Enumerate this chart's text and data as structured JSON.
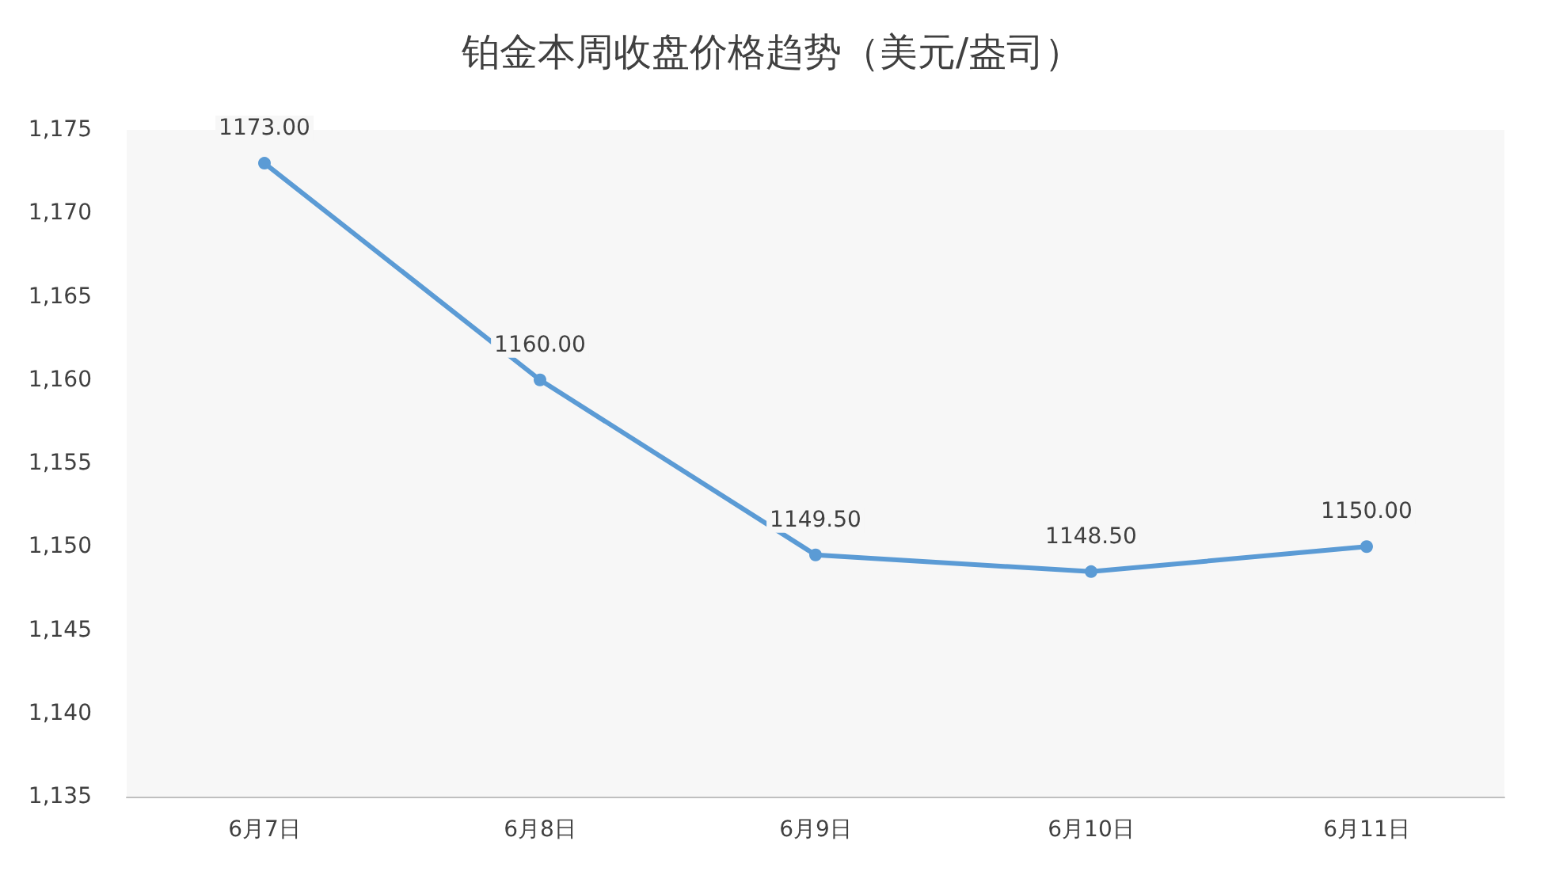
{
  "chart_data": {
    "type": "line",
    "title": "铂金本周收盘价格趋势（美元/盎司）",
    "categories": [
      "6月7日",
      "6月8日",
      "6月9日",
      "6月10日",
      "6月11日"
    ],
    "series": [
      {
        "color": "#5b9bd5",
        "values": [
          1173,
          1160,
          1149.5,
          1148.5,
          1150
        ],
        "value_labels": [
          "1173.00",
          "1160.00",
          "1149.50",
          "1148.50",
          "1150.00"
        ]
      }
    ],
    "ylim": [
      1135,
      1175
    ],
    "yticks": [
      {
        "value": 1135,
        "label": "1,135"
      },
      {
        "value": 1140,
        "label": "1,140"
      },
      {
        "value": 1145,
        "label": "1,145"
      },
      {
        "value": 1150,
        "label": "1,150"
      },
      {
        "value": 1155,
        "label": "1,155"
      },
      {
        "value": 1160,
        "label": "1,160"
      },
      {
        "value": 1165,
        "label": "1,165"
      },
      {
        "value": 1170,
        "label": "1,170"
      },
      {
        "value": 1175,
        "label": "1,175"
      }
    ],
    "grid": false,
    "marker": "circle",
    "line_style": "solid"
  }
}
